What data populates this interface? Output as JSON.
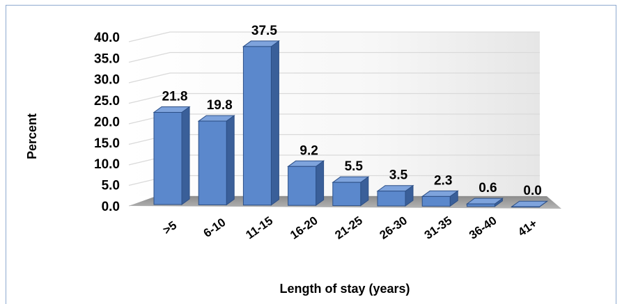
{
  "chart_data": {
    "type": "bar",
    "style": "3d-column",
    "categories": [
      ">5",
      "6-10",
      "11-15",
      "16-20",
      "21-25",
      "26-30",
      "31-35",
      "36-40",
      "41+"
    ],
    "values": [
      21.8,
      19.8,
      37.5,
      9.2,
      5.5,
      3.5,
      2.3,
      0.6,
      0.0
    ],
    "data_labels": [
      "21.8",
      "19.8",
      "37.5",
      "9.2",
      "5.5",
      "3.5",
      "2.3",
      "0.6",
      "0.0"
    ],
    "ylim": [
      0,
      40
    ],
    "y_ticks": [
      "0.0",
      "5.0",
      "10.0",
      "15.0",
      "20.0",
      "25.0",
      "30.0",
      "35.0",
      "40.0"
    ],
    "xlabel": "Length of stay (years)",
    "ylabel": "Percent",
    "title": "",
    "grid": true,
    "colors": {
      "bar_front": "#5b88cc",
      "bar_side": "#3a5f99",
      "bar_top": "#7ea3dc",
      "bar_edge": "#2c4f86",
      "floor": "#a6a6a6",
      "gridline": "#d9d9d9"
    }
  }
}
